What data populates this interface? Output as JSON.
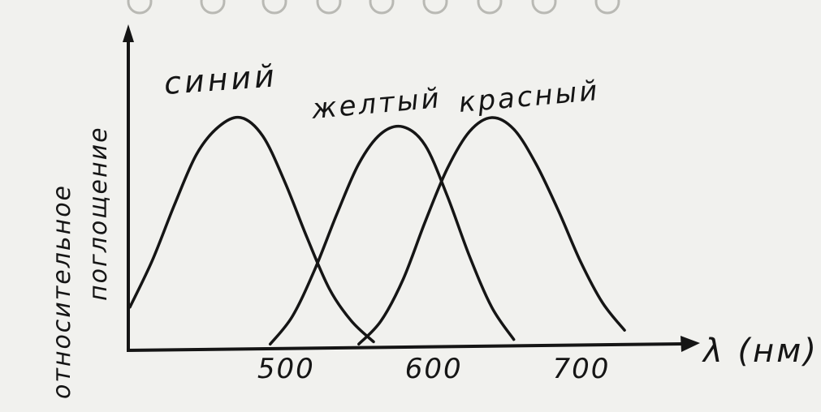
{
  "chart_data": {
    "type": "line",
    "title": "",
    "ylabel": [
      "относительное",
      "поглощение"
    ],
    "xlabel": "λ (нм)",
    "xticks": [
      500,
      600,
      700
    ],
    "xlim": [
      395,
      780
    ],
    "ylim": [
      0,
      1
    ],
    "grid": false,
    "legend": "none",
    "series": [
      {
        "name": "синий",
        "x": [
          395,
          410,
          425,
          440,
          455,
          470,
          485,
          500,
          515,
          530,
          545,
          560
        ],
        "y": [
          0.18,
          0.38,
          0.62,
          0.84,
          0.96,
          1.0,
          0.92,
          0.72,
          0.48,
          0.26,
          0.12,
          0.03
        ]
      },
      {
        "name": "желтый",
        "x": [
          490,
          505,
          520,
          535,
          550,
          565,
          580,
          595,
          610,
          625,
          640,
          655
        ],
        "y": [
          0.02,
          0.14,
          0.34,
          0.58,
          0.8,
          0.93,
          0.96,
          0.88,
          0.66,
          0.4,
          0.18,
          0.04
        ]
      },
      {
        "name": "красный",
        "x": [
          550,
          565,
          580,
          595,
          610,
          625,
          640,
          655,
          670,
          685,
          700,
          715,
          730
        ],
        "y": [
          0.02,
          0.12,
          0.3,
          0.55,
          0.78,
          0.94,
          1.0,
          0.95,
          0.8,
          0.6,
          0.38,
          0.2,
          0.08
        ]
      }
    ]
  },
  "colors": {
    "ink": "#151515",
    "paper": "#f1f1ee",
    "bleed": "#b9b9b4"
  }
}
